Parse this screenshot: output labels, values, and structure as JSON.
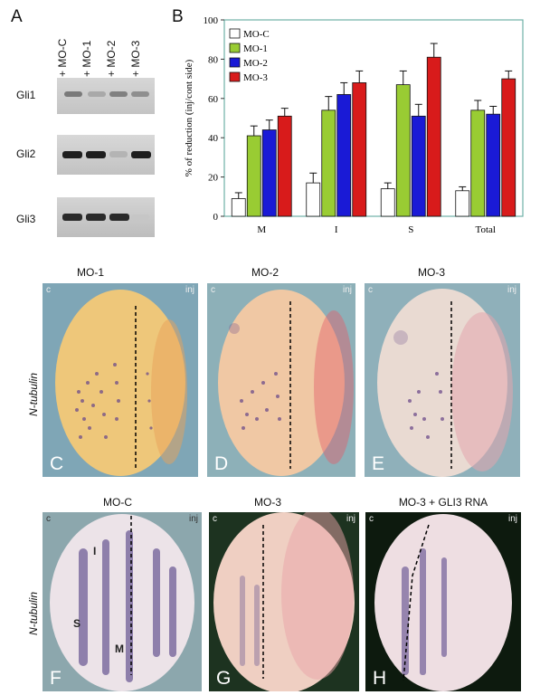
{
  "panel_a": {
    "letter": "A",
    "lanes": [
      "+ MO-C",
      "+ MO-1",
      "+ MO-2",
      "+ MO-3"
    ],
    "genes": [
      "Gli1",
      "Gli2",
      "Gli3"
    ]
  },
  "panel_b": {
    "letter": "B"
  },
  "chart_data": {
    "type": "bar",
    "categories": [
      "M",
      "I",
      "S",
      "Total"
    ],
    "ylabel": "% of reduction (inj/cont side)",
    "ylim": [
      0,
      100
    ],
    "yticks": [
      0,
      20,
      40,
      60,
      80,
      100
    ],
    "legend": "top-left",
    "grid": false,
    "series": [
      {
        "name": "MO-C",
        "color": "#ffffff",
        "values": [
          9,
          17,
          14,
          13
        ],
        "errors": [
          3,
          5,
          3,
          2
        ]
      },
      {
        "name": "MO-1",
        "color": "#99cc33",
        "values": [
          41,
          54,
          67,
          54
        ],
        "errors": [
          5,
          7,
          7,
          5
        ]
      },
      {
        "name": "MO-2",
        "color": "#1a1ad6",
        "values": [
          44,
          62,
          51,
          52
        ],
        "errors": [
          5,
          6,
          6,
          4
        ]
      },
      {
        "name": "MO-3",
        "color": "#d81b1b",
        "values": [
          51,
          68,
          81,
          70
        ],
        "errors": [
          4,
          6,
          7,
          4
        ]
      }
    ]
  },
  "row1": {
    "side_label": "N-tubulin",
    "panels": [
      {
        "title": "MO-1",
        "letter": "C",
        "c": "c",
        "inj": "inj"
      },
      {
        "title": "MO-2",
        "letter": "D",
        "c": "c",
        "inj": "inj"
      },
      {
        "title": "MO-3",
        "letter": "E",
        "c": "c",
        "inj": "inj"
      }
    ]
  },
  "row2": {
    "side_label": "N-tubulin",
    "panels": [
      {
        "title": "MO-C",
        "letter": "F",
        "c": "c",
        "inj": "inj"
      },
      {
        "title": "MO-3",
        "letter": "G",
        "c": "c",
        "inj": "inj"
      },
      {
        "title": "MO-3 + GLI3 RNA",
        "letter": "H",
        "c": "c",
        "inj": "inj"
      }
    ],
    "stripe_labels": {
      "i": "I",
      "s": "S",
      "m": "M"
    }
  }
}
